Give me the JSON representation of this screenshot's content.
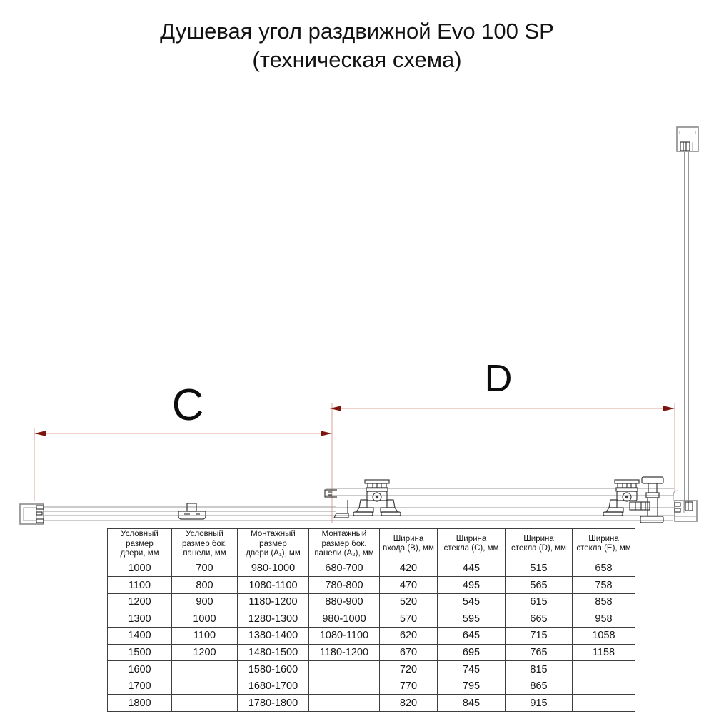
{
  "title": {
    "line1": "Душевая угол раздвижной Evo 100 SP",
    "line2": "(техническая схема)"
  },
  "diagram": {
    "dim_c_label": "C",
    "dim_d_label": "D",
    "colors": {
      "dimension_line": "#e2a396",
      "dimension_arrow": "#7b150e",
      "drawing_line": "#979797",
      "mechanism_line": "#3b3b3b"
    }
  },
  "table": {
    "headers": [
      {
        "lines": [
          "Условный",
          "размер",
          "двери, мм"
        ]
      },
      {
        "lines": [
          "Условный",
          "размер бок.",
          "панели, мм"
        ]
      },
      {
        "lines": [
          "Монтажный",
          "размер",
          "двери (А₁), мм"
        ]
      },
      {
        "lines": [
          "Монтажный",
          "размер бок.",
          "панели (А₂), мм"
        ]
      },
      {
        "lines": [
          "Ширина",
          "входа (B), мм"
        ]
      },
      {
        "lines": [
          "Ширина",
          "стекла (C), мм"
        ]
      },
      {
        "lines": [
          "Ширина",
          "стекла (D), мм"
        ]
      },
      {
        "lines": [
          "Ширина",
          "стекла (E), мм"
        ]
      }
    ],
    "rows": [
      [
        "1000",
        "700",
        "980-1000",
        "680-700",
        "420",
        "445",
        "515",
        "658"
      ],
      [
        "1100",
        "800",
        "1080-1100",
        "780-800",
        "470",
        "495",
        "565",
        "758"
      ],
      [
        "1200",
        "900",
        "1180-1200",
        "880-900",
        "520",
        "545",
        "615",
        "858"
      ],
      [
        "1300",
        "1000",
        "1280-1300",
        "980-1000",
        "570",
        "595",
        "665",
        "958"
      ],
      [
        "1400",
        "1100",
        "1380-1400",
        "1080-1100",
        "620",
        "645",
        "715",
        "1058"
      ],
      [
        "1500",
        "1200",
        "1480-1500",
        "1180-1200",
        "670",
        "695",
        "765",
        "1158"
      ],
      [
        "1600",
        "",
        "1580-1600",
        "",
        "720",
        "745",
        "815",
        ""
      ],
      [
        "1700",
        "",
        "1680-1700",
        "",
        "770",
        "795",
        "865",
        ""
      ],
      [
        "1800",
        "",
        "1780-1800",
        "",
        "820",
        "845",
        "915",
        ""
      ]
    ]
  }
}
